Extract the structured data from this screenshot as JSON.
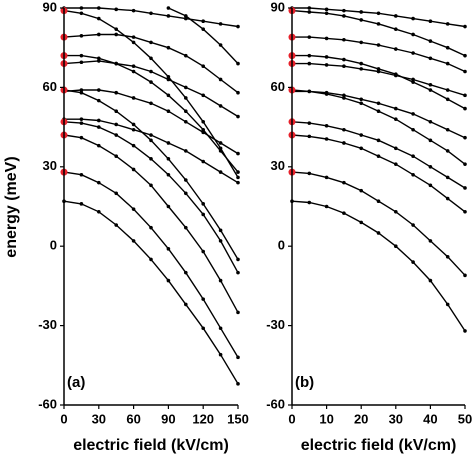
{
  "chart_data": [
    {
      "type": "line",
      "panel_label": "(a)",
      "ylabel": "energy (meV)",
      "xlabel": "electric field (kV/cm)",
      "x": [
        0,
        15,
        30,
        45,
        60,
        75,
        90,
        105,
        120,
        135,
        150
      ],
      "xlim": [
        0,
        150
      ],
      "ylim": [
        -60,
        90
      ],
      "xticks": [
        0,
        30,
        60,
        90,
        120,
        150
      ],
      "yticks": [
        -60,
        -30,
        0,
        30,
        60,
        90
      ],
      "color": "#000000",
      "series": [
        {
          "values": [
            17,
            16,
            13,
            8,
            2,
            -5,
            -13,
            -22,
            -31,
            -41,
            -52
          ]
        },
        {
          "values": [
            28,
            27,
            24,
            20,
            14,
            7,
            -1,
            -10,
            -20,
            -31,
            -42
          ]
        },
        {
          "values": [
            42,
            41,
            38,
            34,
            29,
            23,
            15,
            7,
            -2,
            -13,
            -25
          ]
        },
        {
          "values": [
            47,
            46.5,
            45,
            42,
            38,
            33,
            27,
            20,
            12,
            2,
            -10
          ]
        },
        {
          "values": [
            48,
            48,
            47.5,
            46,
            44,
            42,
            39,
            36,
            32,
            28,
            24
          ]
        },
        {
          "values": [
            58.5,
            59,
            59,
            58,
            56,
            54,
            51,
            47,
            43,
            39,
            35
          ]
        },
        {
          "values": [
            59,
            58,
            55,
            51,
            46,
            40,
            33,
            25,
            16,
            6,
            -5
          ]
        },
        {
          "values": [
            69,
            69.5,
            70,
            69,
            68,
            66,
            63,
            60,
            57,
            53,
            49
          ]
        },
        {
          "values": [
            72,
            72,
            71,
            69,
            66,
            62,
            57,
            51,
            44,
            36,
            28
          ]
        },
        {
          "values": [
            79,
            79.5,
            80,
            80,
            79,
            77,
            75,
            72,
            68,
            63,
            58
          ]
        },
        {
          "values": [
            89,
            88,
            86,
            82,
            77,
            71,
            64,
            56,
            47,
            37,
            26
          ]
        },
        {
          "values": [
            90,
            90,
            90,
            89.5,
            89,
            88,
            87,
            86,
            85,
            84,
            83
          ]
        },
        {
          "values": [
            null,
            null,
            null,
            null,
            null,
            null,
            90,
            87,
            82,
            76,
            69
          ]
        }
      ],
      "markers": {
        "color": "#e8202a",
        "x": [
          0,
          0,
          0,
          0,
          0,
          0,
          0,
          0
        ],
        "y": [
          89,
          79,
          72,
          69,
          59,
          47,
          42,
          28
        ]
      }
    },
    {
      "type": "line",
      "panel_label": "(b)",
      "xlabel": "electric field (kV/cm)",
      "x": [
        0,
        5,
        10,
        15,
        20,
        25,
        30,
        35,
        40,
        45,
        50
      ],
      "xlim": [
        0,
        50
      ],
      "ylim": [
        -60,
        90
      ],
      "xticks": [
        0,
        10,
        20,
        30,
        40,
        50
      ],
      "yticks": [
        -60,
        -30,
        0,
        30,
        60,
        90
      ],
      "color": "#000000",
      "series": [
        {
          "values": [
            17,
            16.5,
            15,
            12.5,
            9,
            5,
            0,
            -6,
            -13,
            -22,
            -32
          ]
        },
        {
          "values": [
            28,
            27.5,
            26,
            24,
            21,
            17,
            13,
            8,
            2,
            -4,
            -11
          ]
        },
        {
          "values": [
            42,
            41.5,
            40.5,
            39,
            37,
            34,
            31,
            27,
            23,
            18,
            13
          ]
        },
        {
          "values": [
            47,
            46.5,
            45.5,
            44,
            42,
            40,
            37,
            34,
            30,
            26,
            22
          ]
        },
        {
          "values": [
            58.5,
            58.5,
            58,
            57,
            55.5,
            54,
            52,
            50,
            47,
            44,
            41
          ]
        },
        {
          "values": [
            59,
            58.5,
            57.5,
            56,
            54,
            51,
            48,
            44,
            40,
            36,
            31
          ]
        },
        {
          "values": [
            69,
            69,
            68.5,
            68,
            67,
            66,
            64.5,
            63,
            61,
            59,
            57
          ]
        },
        {
          "values": [
            72,
            72,
            71.5,
            70.5,
            69,
            67,
            65,
            62,
            59,
            55.5,
            52
          ]
        },
        {
          "values": [
            79,
            79,
            78.5,
            78,
            77,
            76,
            74.5,
            73,
            71,
            69,
            66
          ]
        },
        {
          "values": [
            89,
            88.5,
            88,
            87,
            85.5,
            84,
            82,
            80,
            77.5,
            75,
            72
          ]
        },
        {
          "values": [
            90,
            90,
            89.5,
            89,
            88.5,
            88,
            87,
            86,
            85,
            84,
            83
          ]
        }
      ],
      "markers": {
        "color": "#e8202a",
        "x": [
          0,
          0,
          0,
          0,
          0,
          0,
          0,
          0
        ],
        "y": [
          89,
          79,
          72,
          69,
          59,
          47,
          42,
          28
        ]
      }
    }
  ]
}
